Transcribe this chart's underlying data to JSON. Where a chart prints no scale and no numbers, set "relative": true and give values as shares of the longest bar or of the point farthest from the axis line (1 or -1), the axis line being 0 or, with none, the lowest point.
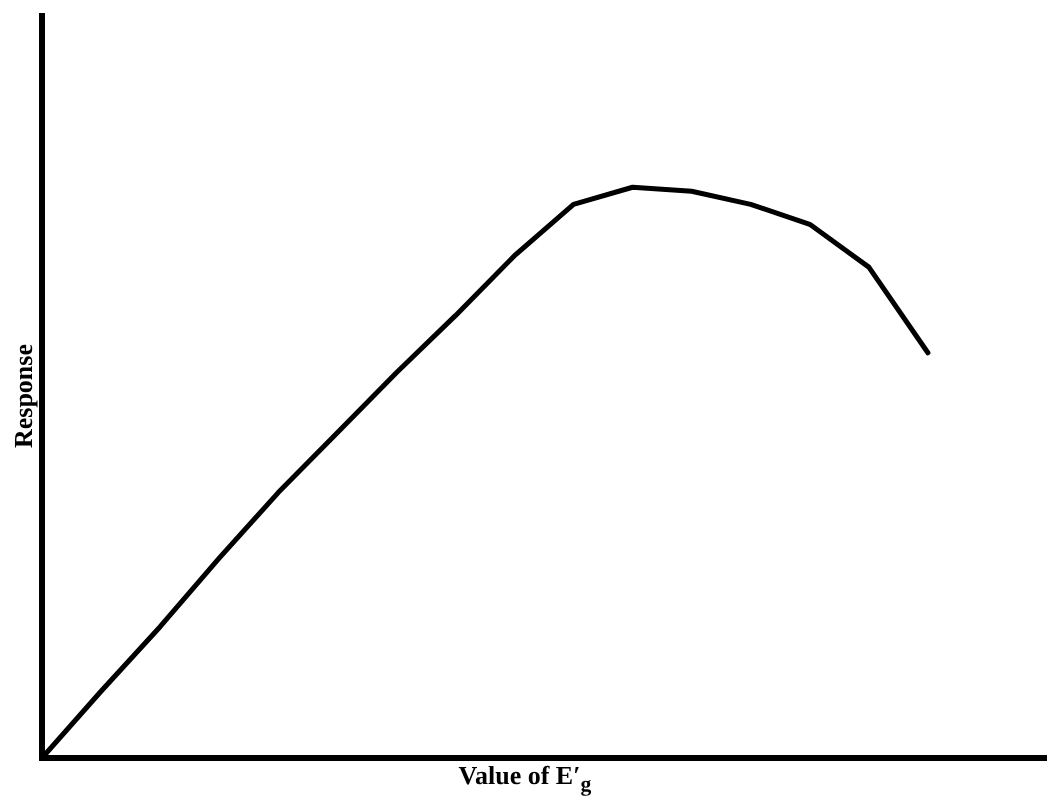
{
  "chart_data": {
    "type": "line",
    "relative": true,
    "xlabel": "Value of E′$_{g}$",
    "ylabel": "Response",
    "categories": [
      null,
      null,
      null,
      null,
      null,
      null,
      null,
      null,
      null,
      null,
      null,
      null,
      null,
      null,
      null,
      null,
      null,
      null
    ],
    "series": [
      {
        "color": "#000000",
        "values": [
          0,
          0.117,
          0.23,
          0.35,
          0.465,
          0.57,
          0.675,
          0.775,
          0.88,
          0.97,
          1,
          0.993,
          0.97,
          0.935,
          0.86,
          0.71,
          null,
          null
        ]
      }
    ],
    "grid": false,
    "legend": false,
    "marker": "none",
    "line_style": "solid"
  }
}
